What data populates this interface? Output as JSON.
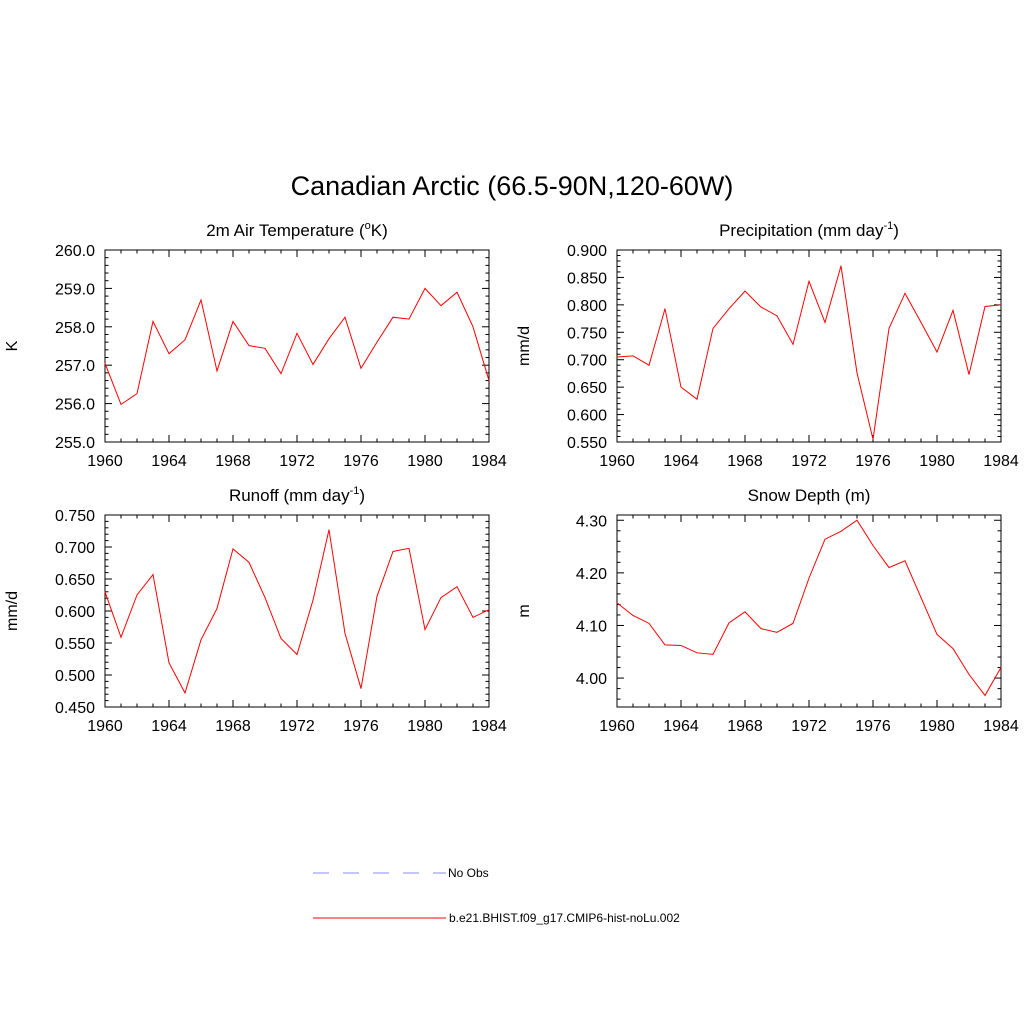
{
  "figure": {
    "title": "Canadian Arctic (66.5-90N,120-60W)"
  },
  "legend": {
    "entries": [
      {
        "label": "No Obs",
        "color": "#a0a0ff",
        "style": "dashed"
      },
      {
        "label": "b.e21.BHIST.f09_g17.CMIP6-hist-noLu.002",
        "color": "#ff0000",
        "style": "solid"
      }
    ]
  },
  "chart_data": [
    {
      "type": "line",
      "title": "2m Air Temperature (oK)",
      "title_parts": {
        "pre": "2m Air Temperature (",
        "sup": "o",
        "post": "K)"
      },
      "xlabel": "",
      "ylabel": "K",
      "xlim": [
        1960,
        1984
      ],
      "ylim": [
        255.0,
        260.0
      ],
      "x_ticks": [
        "1960",
        "1964",
        "1968",
        "1972",
        "1976",
        "1980",
        "1984"
      ],
      "y_ticks": [
        "255.0",
        "256.0",
        "257.0",
        "258.0",
        "259.0",
        "260.0"
      ],
      "series": [
        {
          "color": "#ff0000",
          "x": [
            1960,
            1961,
            1962,
            1963,
            1964,
            1965,
            1966,
            1967,
            1968,
            1969,
            1970,
            1971,
            1972,
            1973,
            1974,
            1975,
            1976,
            1977,
            1978,
            1979,
            1980,
            1981,
            1982,
            1983,
            1984
          ],
          "values": [
            257.05,
            255.98,
            256.26,
            258.14,
            257.3,
            257.66,
            258.7,
            256.85,
            258.14,
            257.51,
            257.44,
            256.78,
            257.83,
            257.02,
            257.69,
            258.25,
            256.92,
            257.6,
            258.25,
            258.2,
            259.0,
            258.55,
            258.9,
            258.0,
            256.6
          ]
        }
      ]
    },
    {
      "type": "line",
      "title": "Precipitation (mm day-1)",
      "title_parts": {
        "pre": "Precipitation (mm day",
        "sup": "-1",
        "post": ")"
      },
      "xlabel": "",
      "ylabel": "mm/d",
      "xlim": [
        1960,
        1984
      ],
      "ylim": [
        0.55,
        0.9
      ],
      "x_ticks": [
        "1960",
        "1964",
        "1968",
        "1972",
        "1976",
        "1980",
        "1984"
      ],
      "y_ticks": [
        "0.550",
        "0.600",
        "0.650",
        "0.700",
        "0.750",
        "0.800",
        "0.850",
        "0.900"
      ],
      "series": [
        {
          "color": "#ff0000",
          "x": [
            1960,
            1961,
            1962,
            1963,
            1964,
            1965,
            1966,
            1967,
            1968,
            1969,
            1970,
            1971,
            1972,
            1973,
            1974,
            1975,
            1976,
            1977,
            1978,
            1979,
            1980,
            1981,
            1982,
            1983,
            1984
          ],
          "values": [
            0.705,
            0.707,
            0.69,
            0.793,
            0.65,
            0.628,
            0.757,
            0.793,
            0.825,
            0.796,
            0.78,
            0.728,
            0.843,
            0.768,
            0.871,
            0.676,
            0.555,
            0.757,
            0.821,
            0.768,
            0.714,
            0.79,
            0.673,
            0.797,
            0.8
          ]
        }
      ]
    },
    {
      "type": "line",
      "title": "Runoff (mm day-1)",
      "title_parts": {
        "pre": "Runoff (mm day",
        "sup": "-1",
        "post": ")"
      },
      "xlabel": "",
      "ylabel": "mm/d",
      "xlim": [
        1960,
        1984
      ],
      "ylim": [
        0.45,
        0.75
      ],
      "x_ticks": [
        "1960",
        "1964",
        "1968",
        "1972",
        "1976",
        "1980",
        "1984"
      ],
      "y_ticks": [
        "0.450",
        "0.500",
        "0.550",
        "0.600",
        "0.650",
        "0.700",
        "0.750"
      ],
      "series": [
        {
          "color": "#ff0000",
          "x": [
            1960,
            1961,
            1962,
            1963,
            1964,
            1965,
            1966,
            1967,
            1968,
            1969,
            1970,
            1971,
            1972,
            1973,
            1974,
            1975,
            1976,
            1977,
            1978,
            1979,
            1980,
            1981,
            1982,
            1983,
            1984
          ],
          "values": [
            0.63,
            0.559,
            0.625,
            0.657,
            0.519,
            0.472,
            0.555,
            0.604,
            0.697,
            0.676,
            0.621,
            0.557,
            0.532,
            0.617,
            0.727,
            0.565,
            0.479,
            0.623,
            0.693,
            0.698,
            0.571,
            0.621,
            0.638,
            0.59,
            0.602
          ]
        }
      ]
    },
    {
      "type": "line",
      "title": "Snow Depth (m)",
      "title_parts": {
        "pre": "Snow Depth (m)",
        "sup": "",
        "post": ""
      },
      "xlabel": "",
      "ylabel": "m",
      "xlim": [
        1960,
        1984
      ],
      "ylim": [
        3.945,
        4.31
      ],
      "x_ticks": [
        "1960",
        "1964",
        "1968",
        "1972",
        "1976",
        "1980",
        "1984"
      ],
      "y_ticks": [
        "4.00",
        "4.10",
        "4.20",
        "4.30"
      ],
      "series": [
        {
          "color": "#ff0000",
          "x": [
            1960,
            1961,
            1962,
            1963,
            1964,
            1965,
            1966,
            1967,
            1968,
            1969,
            1970,
            1971,
            1972,
            1973,
            1974,
            1975,
            1976,
            1977,
            1978,
            1979,
            1980,
            1981,
            1982,
            1983,
            1984
          ],
          "values": [
            4.143,
            4.119,
            4.104,
            4.063,
            4.062,
            4.048,
            4.045,
            4.105,
            4.126,
            4.094,
            4.087,
            4.104,
            4.19,
            4.264,
            4.279,
            4.3,
            4.252,
            4.21,
            4.223,
            4.153,
            4.083,
            4.056,
            4.007,
            3.967,
            4.02
          ]
        }
      ]
    }
  ]
}
